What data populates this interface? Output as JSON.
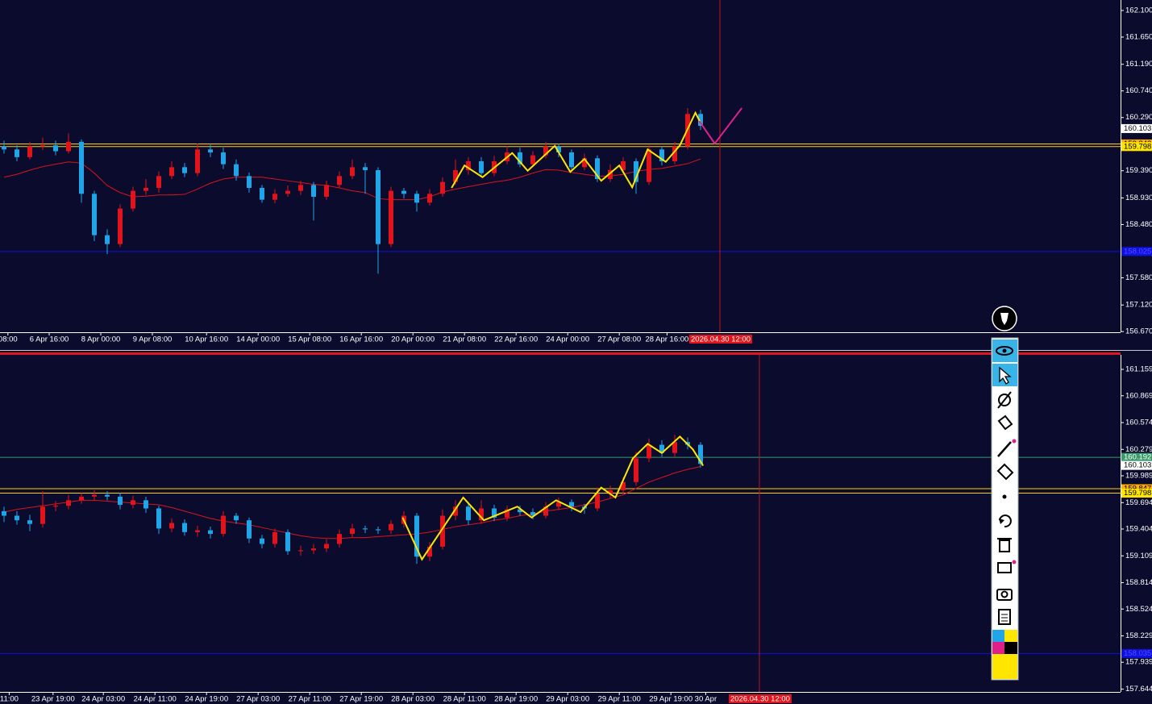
{
  "chart_data": [
    {
      "type": "candlestick",
      "up_color": "#e0141a",
      "down_color": "#20a6e8",
      "xlim": [
        -0.3125,
        86.5625
      ],
      "ylim": [
        156.659,
        162.277
      ],
      "yticks": [
        {
          "value": 162.1,
          "label": "162.100"
        },
        {
          "value": 161.65,
          "label": "161.650"
        },
        {
          "value": 161.19,
          "label": "161.190"
        },
        {
          "value": 160.74,
          "label": "160.740"
        },
        {
          "value": 160.29,
          "label": "160.290"
        },
        {
          "value": 159.39,
          "label": "159.390"
        },
        {
          "value": 158.93,
          "label": "158.930"
        },
        {
          "value": 158.48,
          "label": "158.480"
        },
        {
          "value": 157.58,
          "label": "157.580"
        },
        {
          "value": 157.12,
          "label": "157.120"
        },
        {
          "value": 156.67,
          "label": "156.670"
        }
      ],
      "xticks": [
        {
          "value": 0.3,
          "label": "08:00"
        },
        {
          "value": 3.5,
          "label": "6 Apr 16:00"
        },
        {
          "value": 7.5,
          "label": "8 Apr 00:00"
        },
        {
          "value": 11.5,
          "label": "9 Apr 08:00"
        },
        {
          "value": 15.7,
          "label": "10 Apr 16:00"
        },
        {
          "value": 19.7,
          "label": "14 Apr 00:00"
        },
        {
          "value": 23.7,
          "label": "15 Apr 08:00"
        },
        {
          "value": 27.7,
          "label": "16 Apr 16:00"
        },
        {
          "value": 31.7,
          "label": "20 Apr 00:00"
        },
        {
          "value": 35.7,
          "label": "21 Apr 08:00"
        },
        {
          "value": 39.7,
          "label": "22 Apr 16:00"
        },
        {
          "value": 43.7,
          "label": "24 Apr 00:00"
        },
        {
          "value": 47.7,
          "label": "27 Apr 08:00"
        },
        {
          "value": 51.4,
          "label": "28 Apr 16:00"
        }
      ],
      "open": [
        159.8,
        159.75,
        159.62,
        159.8,
        159.82,
        159.72,
        159.88,
        159.0,
        158.3,
        158.15,
        158.75,
        159.05,
        159.1,
        159.3,
        159.45,
        159.35,
        159.75,
        159.7,
        159.5,
        159.3,
        159.1,
        158.9,
        159.0,
        159.05,
        159.15,
        158.95,
        159.15,
        159.3,
        159.45,
        159.4,
        158.15,
        159.05,
        159.0,
        158.85,
        159.0,
        159.2,
        159.4,
        159.55,
        159.35,
        159.55,
        159.7,
        159.5,
        159.65,
        159.8,
        159.7,
        159.45,
        159.6,
        159.25,
        159.4,
        159.55,
        159.2,
        159.75,
        159.55,
        159.8,
        160.35
      ],
      "high": [
        159.9,
        159.82,
        159.88,
        159.95,
        159.9,
        160.02,
        159.92,
        159.05,
        158.4,
        158.82,
        159.12,
        159.25,
        159.38,
        159.55,
        159.52,
        159.85,
        159.83,
        159.78,
        159.58,
        159.36,
        159.15,
        159.08,
        159.14,
        159.22,
        159.2,
        159.22,
        159.38,
        159.58,
        159.52,
        159.45,
        159.12,
        159.1,
        159.05,
        159.08,
        159.28,
        159.58,
        159.62,
        159.62,
        159.64,
        159.8,
        159.78,
        159.72,
        159.88,
        159.85,
        159.75,
        159.68,
        159.65,
        159.5,
        159.62,
        159.6,
        159.82,
        159.8,
        159.88,
        160.45,
        160.42
      ],
      "low": [
        159.68,
        159.55,
        159.58,
        159.74,
        159.65,
        159.68,
        158.85,
        158.2,
        157.98,
        158.1,
        158.7,
        158.98,
        159.02,
        159.25,
        159.28,
        159.3,
        159.62,
        159.42,
        159.22,
        159.02,
        158.85,
        158.84,
        158.95,
        158.98,
        158.55,
        158.9,
        159.1,
        159.25,
        159.0,
        157.65,
        158.1,
        158.92,
        158.7,
        158.8,
        158.95,
        159.15,
        159.32,
        159.28,
        159.3,
        159.5,
        159.45,
        159.45,
        159.6,
        159.62,
        159.38,
        159.4,
        159.2,
        159.2,
        159.35,
        159.0,
        159.15,
        159.48,
        159.5,
        159.75,
        160.08
      ],
      "close": [
        159.75,
        159.62,
        159.8,
        159.82,
        159.72,
        159.88,
        159.0,
        158.3,
        158.15,
        158.75,
        159.05,
        159.1,
        159.3,
        159.45,
        159.35,
        159.75,
        159.7,
        159.5,
        159.3,
        159.1,
        158.9,
        159.0,
        159.05,
        159.15,
        158.95,
        159.15,
        159.3,
        159.45,
        159.4,
        158.15,
        159.05,
        159.0,
        158.85,
        159.0,
        159.2,
        159.4,
        159.55,
        159.35,
        159.55,
        159.7,
        159.5,
        159.65,
        159.8,
        159.7,
        159.45,
        159.6,
        159.25,
        159.4,
        159.55,
        159.2,
        159.75,
        159.55,
        159.8,
        160.35,
        160.15
      ],
      "ma": {
        "color": "#d8141a",
        "values": [
          159.28,
          159.33,
          159.4,
          159.46,
          159.5,
          159.54,
          159.52,
          159.35,
          159.14,
          159.02,
          158.95,
          158.96,
          158.98,
          158.98,
          158.99,
          159.08,
          159.18,
          159.25,
          159.28,
          159.28,
          159.28,
          159.25,
          159.22,
          159.19,
          159.16,
          159.14,
          159.1,
          159.05,
          159.02,
          158.92,
          158.9,
          158.9,
          158.9,
          158.95,
          159.03,
          159.08,
          159.12,
          159.16,
          159.2,
          159.23,
          159.28,
          159.35,
          159.41,
          159.4,
          159.36,
          159.33,
          159.3,
          159.3,
          159.33,
          159.38,
          159.41,
          159.43,
          159.47,
          159.51,
          159.59
        ]
      },
      "lines": [
        {
          "color": "#ffe600",
          "x": [
            34.7,
            35.7,
            37.1,
            39.4,
            40.6,
            42.7,
            43.9,
            45.0,
            46.3,
            47.7,
            48.7,
            49.9,
            51.3,
            52.4,
            53.6,
            54.1
          ],
          "values": [
            159.1,
            159.48,
            159.28,
            159.69,
            159.39,
            159.81,
            159.37,
            159.59,
            159.22,
            159.48,
            159.11,
            159.75,
            159.54,
            159.82,
            160.37,
            160.16
          ]
        },
        {
          "color": "#e0208a",
          "x": [
            53.9,
            55.1,
            57.2
          ],
          "values": [
            160.23,
            159.85,
            160.45
          ]
        }
      ],
      "levels": [
        {
          "value": 159.843,
          "color": "#ffd200"
        },
        {
          "value": 159.798,
          "color": "#ffd200"
        },
        {
          "value": 158.025,
          "color": "#1010e0"
        }
      ],
      "tags": [
        {
          "value": 160.103,
          "bg": "#ffffff",
          "fg": "#000000"
        },
        {
          "value": 159.843,
          "bg": "#ffb000",
          "fg": "#000000"
        },
        {
          "value": 159.798,
          "bg": "#ffe600",
          "fg": "#000000"
        },
        {
          "value": 158.025,
          "bg": "#1010e0",
          "fg": "#5050ff"
        }
      ],
      "cursor": {
        "x": 55.5,
        "label": "2026.04.30 12:00"
      }
    },
    {
      "type": "candlestick",
      "up_color": "#e0141a",
      "down_color": "#20a6e8",
      "xlim": [
        -0.3125,
        86.5625
      ],
      "ylim": [
        157.613,
        161.319
      ],
      "yticks": [
        {
          "value": 161.159,
          "label": "161.159"
        },
        {
          "value": 160.869,
          "label": "160.869"
        },
        {
          "value": 160.574,
          "label": "160.574"
        },
        {
          "value": 160.279,
          "label": "160.279"
        },
        {
          "value": 159.989,
          "label": "159.989"
        },
        {
          "value": 159.694,
          "label": "159.694"
        },
        {
          "value": 159.404,
          "label": "159.404"
        },
        {
          "value": 159.109,
          "label": "159.109"
        },
        {
          "value": 158.814,
          "label": "158.814"
        },
        {
          "value": 158.524,
          "label": "158.524"
        },
        {
          "value": 158.229,
          "label": "158.229"
        },
        {
          "value": 157.939,
          "label": "157.939"
        },
        {
          "value": 157.644,
          "label": "157.644"
        }
      ],
      "xticks": [
        {
          "value": 0.4,
          "label": "11:00"
        },
        {
          "value": 3.8,
          "label": "23 Apr 19:00"
        },
        {
          "value": 7.7,
          "label": "24 Apr 03:00"
        },
        {
          "value": 11.7,
          "label": "24 Apr 11:00"
        },
        {
          "value": 15.7,
          "label": "24 Apr 19:00"
        },
        {
          "value": 19.7,
          "label": "27 Apr 03:00"
        },
        {
          "value": 23.7,
          "label": "27 Apr 11:00"
        },
        {
          "value": 27.7,
          "label": "27 Apr 19:00"
        },
        {
          "value": 31.7,
          "label": "28 Apr 03:00"
        },
        {
          "value": 35.7,
          "label": "28 Apr 11:00"
        },
        {
          "value": 39.7,
          "label": "28 Apr 19:00"
        },
        {
          "value": 43.7,
          "label": "29 Apr 03:00"
        },
        {
          "value": 47.7,
          "label": "29 Apr 11:00"
        },
        {
          "value": 51.7,
          "label": "29 Apr 19:00"
        },
        {
          "value": 54.4,
          "label": "30 Apr"
        }
      ],
      "open": [
        159.6,
        159.55,
        159.5,
        159.46,
        159.65,
        159.66,
        159.72,
        159.76,
        159.78,
        159.76,
        159.67,
        159.72,
        159.63,
        159.41,
        159.47,
        159.37,
        159.39,
        159.35,
        159.55,
        159.5,
        159.3,
        159.24,
        159.37,
        159.16,
        159.17,
        159.19,
        159.24,
        159.35,
        159.41,
        159.4,
        159.39,
        159.46,
        159.55,
        159.1,
        159.21,
        159.55,
        159.65,
        159.5,
        159.63,
        159.53,
        159.62,
        159.59,
        159.55,
        159.65,
        159.7,
        159.65,
        159.63,
        159.79,
        159.83,
        159.92,
        160.18,
        160.33,
        160.24,
        160.36,
        160.33
      ],
      "high": [
        159.65,
        159.6,
        159.56,
        159.82,
        159.71,
        159.78,
        159.8,
        159.83,
        159.82,
        159.8,
        159.77,
        159.76,
        159.66,
        159.52,
        159.51,
        159.44,
        159.43,
        159.6,
        159.58,
        159.53,
        159.34,
        159.41,
        159.4,
        159.22,
        159.24,
        159.29,
        159.4,
        159.46,
        159.44,
        159.43,
        159.5,
        159.6,
        159.58,
        159.26,
        159.62,
        159.72,
        159.7,
        159.72,
        159.67,
        159.66,
        159.66,
        159.63,
        159.7,
        159.75,
        159.73,
        159.68,
        159.86,
        159.88,
        159.97,
        160.25,
        160.4,
        160.38,
        160.44,
        160.41,
        160.36
      ],
      "low": [
        159.48,
        159.45,
        159.38,
        159.42,
        159.6,
        159.62,
        159.68,
        159.72,
        159.72,
        159.62,
        159.63,
        159.58,
        159.35,
        159.37,
        159.33,
        159.32,
        159.3,
        159.32,
        159.46,
        159.25,
        159.19,
        159.2,
        159.12,
        159.11,
        159.13,
        159.15,
        159.2,
        159.31,
        159.36,
        159.35,
        159.35,
        159.42,
        159.02,
        159.05,
        159.18,
        159.5,
        159.45,
        159.46,
        159.49,
        159.49,
        159.55,
        159.51,
        159.52,
        159.61,
        159.6,
        159.57,
        159.6,
        159.74,
        159.79,
        159.88,
        160.14,
        160.2,
        160.2,
        160.28,
        160.08
      ],
      "close": [
        159.55,
        159.5,
        159.46,
        159.65,
        159.66,
        159.72,
        159.76,
        159.78,
        159.76,
        159.67,
        159.72,
        159.63,
        159.41,
        159.47,
        159.37,
        159.39,
        159.35,
        159.55,
        159.5,
        159.3,
        159.24,
        159.37,
        159.16,
        159.17,
        159.19,
        159.24,
        159.35,
        159.41,
        159.4,
        159.39,
        159.46,
        159.55,
        159.1,
        159.21,
        159.55,
        159.65,
        159.5,
        159.63,
        159.53,
        159.62,
        159.59,
        159.55,
        159.65,
        159.7,
        159.65,
        159.63,
        159.79,
        159.83,
        159.92,
        160.18,
        160.33,
        160.24,
        160.36,
        160.33,
        160.12
      ],
      "ma": {
        "color": "#d8141a",
        "values": [
          159.59,
          159.62,
          159.64,
          159.66,
          159.68,
          159.7,
          159.72,
          159.72,
          159.71,
          159.7,
          159.69,
          159.68,
          159.67,
          159.64,
          159.6,
          159.56,
          159.52,
          159.49,
          159.47,
          159.45,
          159.42,
          159.39,
          159.36,
          159.33,
          159.31,
          159.3,
          159.3,
          159.31,
          159.31,
          159.32,
          159.33,
          159.34,
          159.35,
          159.37,
          159.4,
          159.43,
          159.45,
          159.47,
          159.5,
          159.52,
          159.55,
          159.57,
          159.6,
          159.62,
          159.64,
          159.67,
          159.7,
          159.74,
          159.78,
          159.85,
          159.92,
          159.97,
          160.02,
          160.06,
          160.09
        ]
      },
      "lines": [
        {
          "color": "#ffe600",
          "x": [
            30.9,
            32.4,
            35.6,
            37.2,
            39.8,
            40.9,
            42.8,
            44.7,
            46.3,
            47.4,
            48.75,
            49.9,
            51.0,
            52.4,
            53.4,
            54.2
          ],
          "values": [
            159.53,
            159.07,
            159.75,
            159.5,
            159.65,
            159.53,
            159.72,
            159.59,
            159.86,
            159.75,
            160.18,
            160.34,
            160.24,
            160.42,
            160.28,
            160.1
          ]
        }
      ],
      "levels": [
        {
          "value": 160.192,
          "color": "#3a9a6a"
        },
        {
          "value": 159.847,
          "color": "#ffd200"
        },
        {
          "value": 159.798,
          "color": "#ffd200"
        },
        {
          "value": 158.035,
          "color": "#1010e0"
        }
      ],
      "tags": [
        {
          "value": 160.192,
          "bg": "#3a9a6a",
          "fg": "#ffffff"
        },
        {
          "value": 160.103,
          "bg": "#ffffff",
          "fg": "#000000"
        },
        {
          "value": 159.847,
          "bg": "#ffb000",
          "fg": "#000000"
        },
        {
          "value": 159.798,
          "bg": "#ffe600",
          "fg": "#000000"
        },
        {
          "value": 158.035,
          "bg": "#1010e0",
          "fg": "#5050ff"
        }
      ],
      "cursor": {
        "x": 58.56,
        "label": "2026.04.30 12:00"
      }
    }
  ]
}
